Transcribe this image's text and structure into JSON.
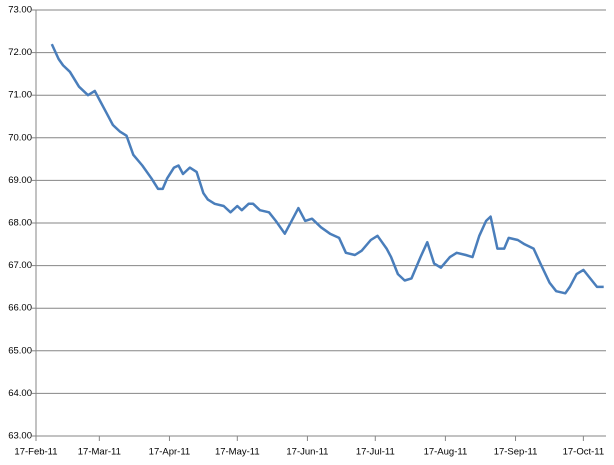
{
  "chart_data": {
    "type": "line",
    "x": [
      "2011-02-24",
      "2011-02-27",
      "2011-03-01",
      "2011-03-04",
      "2011-03-08",
      "2011-03-12",
      "2011-03-15",
      "2011-03-17",
      "2011-03-20",
      "2011-03-23",
      "2011-03-26",
      "2011-03-29",
      "2011-04-01",
      "2011-04-05",
      "2011-04-09",
      "2011-04-12",
      "2011-04-14",
      "2011-04-16",
      "2011-04-19",
      "2011-04-21",
      "2011-04-23",
      "2011-04-26",
      "2011-04-29",
      "2011-05-02",
      "2011-05-04",
      "2011-05-07",
      "2011-05-11",
      "2011-05-14",
      "2011-05-17",
      "2011-05-19",
      "2011-05-22",
      "2011-05-24",
      "2011-05-27",
      "2011-05-31",
      "2011-06-03",
      "2011-06-07",
      "2011-06-10",
      "2011-06-13",
      "2011-06-16",
      "2011-06-19",
      "2011-06-23",
      "2011-06-27",
      "2011-07-01",
      "2011-07-04",
      "2011-07-08",
      "2011-07-11",
      "2011-07-15",
      "2011-07-18",
      "2011-07-22",
      "2011-07-24",
      "2011-07-27",
      "2011-07-30",
      "2011-08-02",
      "2011-08-06",
      "2011-08-09",
      "2011-08-12",
      "2011-08-15",
      "2011-08-19",
      "2011-08-22",
      "2011-08-26",
      "2011-08-29",
      "2011-09-01",
      "2011-09-04",
      "2011-09-06",
      "2011-09-09",
      "2011-09-12",
      "2011-09-14",
      "2011-09-18",
      "2011-09-21",
      "2011-09-25",
      "2011-09-28",
      "2011-10-02",
      "2011-10-05",
      "2011-10-09",
      "2011-10-11",
      "2011-10-14",
      "2011-10-17",
      "2011-10-20",
      "2011-10-23",
      "2011-10-26"
    ],
    "series": [
      {
        "color": "#4a7ebb",
        "values": [
          72.2,
          71.85,
          71.7,
          71.55,
          71.2,
          71.0,
          71.1,
          70.9,
          70.6,
          70.3,
          70.15,
          70.05,
          69.6,
          69.35,
          69.05,
          68.8,
          68.8,
          69.05,
          69.3,
          69.35,
          69.15,
          69.3,
          69.2,
          68.7,
          68.55,
          68.45,
          68.4,
          68.25,
          68.4,
          68.3,
          68.45,
          68.45,
          68.3,
          68.25,
          68.05,
          67.75,
          68.05,
          68.35,
          68.05,
          68.1,
          67.9,
          67.75,
          67.65,
          67.3,
          67.25,
          67.35,
          67.6,
          67.7,
          67.4,
          67.2,
          66.8,
          66.65,
          66.7,
          67.2,
          67.55,
          67.05,
          66.95,
          67.2,
          67.3,
          67.25,
          67.2,
          67.7,
          68.05,
          68.15,
          67.4,
          67.4,
          67.65,
          67.6,
          67.5,
          67.4,
          67.05,
          66.6,
          66.4,
          66.35,
          66.5,
          66.8,
          66.9,
          66.7,
          66.5,
          66.5
        ]
      }
    ],
    "xlim": [
      "2011-02-17",
      "2011-10-27"
    ],
    "xticks": [
      {
        "value": "2011-02-17",
        "label": "17-Feb-11"
      },
      {
        "value": "2011-03-17",
        "label": "17-Mar-11"
      },
      {
        "value": "2011-04-17",
        "label": "17-Apr-11"
      },
      {
        "value": "2011-05-17",
        "label": "17-May-11"
      },
      {
        "value": "2011-06-17",
        "label": "17-Jun-11"
      },
      {
        "value": "2011-07-17",
        "label": "17-Jul-11"
      },
      {
        "value": "2011-08-17",
        "label": "17-Aug-11"
      },
      {
        "value": "2011-09-17",
        "label": "17-Sep-11"
      },
      {
        "value": "2011-10-17",
        "label": "17-Oct-11"
      }
    ],
    "ylim": [
      63,
      73
    ],
    "yticks": [
      {
        "value": 63,
        "label": "63.00"
      },
      {
        "value": 64,
        "label": "64.00"
      },
      {
        "value": 65,
        "label": "65.00"
      },
      {
        "value": 66,
        "label": "66.00"
      },
      {
        "value": 67,
        "label": "67.00"
      },
      {
        "value": 68,
        "label": "68.00"
      },
      {
        "value": 69,
        "label": "69.00"
      },
      {
        "value": 70,
        "label": "70.00"
      },
      {
        "value": 71,
        "label": "71.00"
      },
      {
        "value": 72,
        "label": "72.00"
      },
      {
        "value": 73,
        "label": "73.00"
      }
    ],
    "grid": true
  }
}
